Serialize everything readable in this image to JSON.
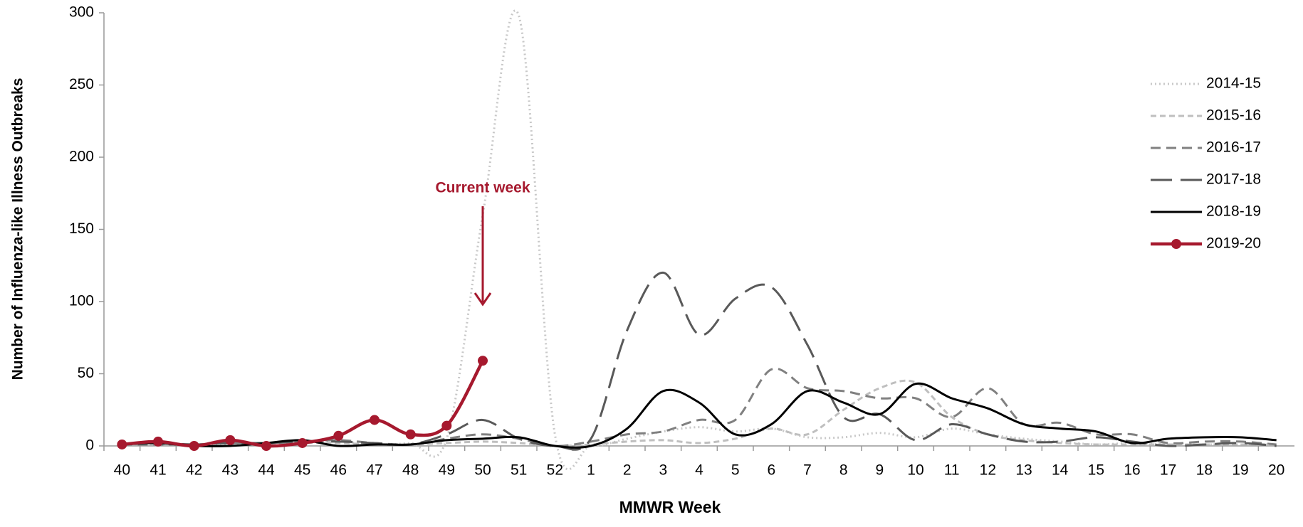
{
  "chart_data": {
    "type": "line",
    "y_label": "Number of Influenza-like Illness Outbreaks",
    "x_label": "MMWR Week",
    "categories": [
      "40",
      "41",
      "42",
      "43",
      "44",
      "45",
      "46",
      "47",
      "48",
      "49",
      "50",
      "51",
      "52",
      "1",
      "2",
      "3",
      "4",
      "5",
      "6",
      "7",
      "8",
      "9",
      "10",
      "11",
      "12",
      "13",
      "14",
      "15",
      "16",
      "17",
      "18",
      "19",
      "20"
    ],
    "ylim": [
      0,
      300
    ],
    "yticks": [
      0,
      50,
      100,
      150,
      200,
      250,
      300
    ],
    "series": [
      {
        "name": "2014-15",
        "color": "#c8c8c8",
        "dash": "dotted",
        "values": [
          1,
          2,
          0,
          1,
          2,
          3,
          3,
          1,
          2,
          5,
          160,
          298,
          8,
          0,
          5,
          10,
          13,
          10,
          12,
          6,
          6,
          9,
          6,
          12,
          8,
          5,
          3,
          1,
          2,
          1,
          1,
          1,
          1
        ]
      },
      {
        "name": "2015-16",
        "color": "#bfbfbf",
        "dash": "short",
        "values": [
          1,
          1,
          1,
          2,
          1,
          2,
          2,
          1,
          1,
          2,
          3,
          2,
          0,
          1,
          3,
          4,
          2,
          5,
          12,
          8,
          25,
          40,
          44,
          20,
          8,
          4,
          2,
          1,
          1,
          1,
          1,
          1,
          1
        ]
      },
      {
        "name": "2016-17",
        "color": "#808080",
        "dash": "medium",
        "values": [
          1,
          1,
          1,
          2,
          2,
          3,
          4,
          2,
          1,
          5,
          8,
          5,
          0,
          3,
          8,
          10,
          18,
          18,
          53,
          40,
          38,
          33,
          33,
          20,
          40,
          15,
          16,
          8,
          8,
          2,
          3,
          3,
          1
        ]
      },
      {
        "name": "2017-18",
        "color": "#595959",
        "dash": "long",
        "values": [
          1,
          2,
          1,
          2,
          2,
          3,
          3,
          2,
          1,
          8,
          18,
          5,
          0,
          5,
          80,
          120,
          77,
          102,
          110,
          70,
          20,
          22,
          4,
          15,
          8,
          3,
          3,
          6,
          3,
          0,
          1,
          2,
          0
        ]
      },
      {
        "name": "2018-19",
        "color": "#000000",
        "dash": "solid",
        "values": [
          1,
          2,
          0,
          0,
          2,
          4,
          0,
          1,
          1,
          4,
          5,
          6,
          0,
          0,
          12,
          38,
          30,
          8,
          15,
          38,
          30,
          22,
          43,
          33,
          26,
          15,
          12,
          10,
          2,
          5,
          6,
          6,
          4
        ]
      },
      {
        "name": "2019-20",
        "color": "#a6192e",
        "dash": "solid",
        "marker": true,
        "values": [
          1,
          3,
          0,
          4,
          0,
          2,
          7,
          18,
          8,
          14,
          59,
          null,
          null,
          null,
          null,
          null,
          null,
          null,
          null,
          null,
          null,
          null,
          null,
          null,
          null,
          null,
          null,
          null,
          null,
          null,
          null,
          null,
          null
        ]
      }
    ],
    "annotations": [
      {
        "text": "Current week",
        "category": "50",
        "color": "#a6192e"
      }
    ],
    "legend": "right"
  }
}
